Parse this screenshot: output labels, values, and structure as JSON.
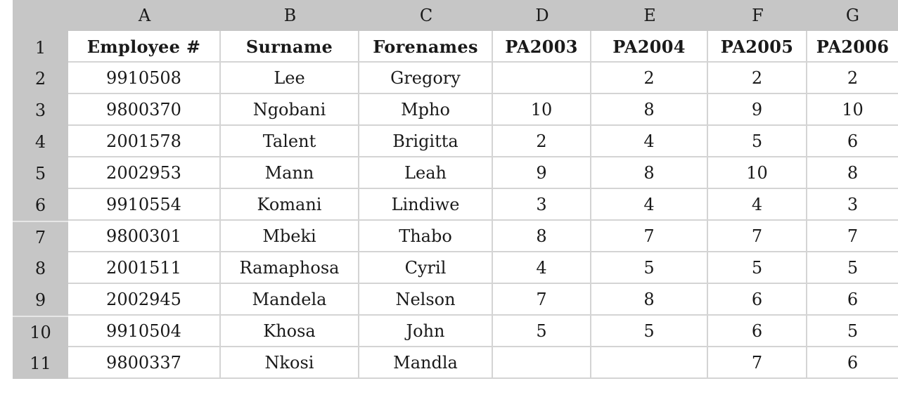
{
  "spreadsheet": {
    "column_headers": [
      "A",
      "B",
      "C",
      "D",
      "E",
      "F",
      "G"
    ],
    "rows": [
      {
        "num": "1",
        "cells": [
          "Employee #",
          "Surname",
          "Forenames",
          "PA2003",
          "PA2004",
          "PA2005",
          "PA2006"
        ]
      },
      {
        "num": "2",
        "cells": [
          "9910508",
          "Lee",
          "Gregory",
          "",
          "2",
          "2",
          "2"
        ]
      },
      {
        "num": "3",
        "cells": [
          "9800370",
          "Ngobani",
          "Mpho",
          "10",
          "8",
          "9",
          "10"
        ]
      },
      {
        "num": "4",
        "cells": [
          "2001578",
          "Talent",
          "Brigitta",
          "2",
          "4",
          "5",
          "6"
        ]
      },
      {
        "num": "5",
        "cells": [
          "2002953",
          "Mann",
          "Leah",
          "9",
          "8",
          "10",
          "8"
        ]
      },
      {
        "num": "6",
        "cells": [
          "9910554",
          "Komani",
          "Lindiwe",
          "3",
          "4",
          "4",
          "3"
        ]
      },
      {
        "num": "7",
        "cells": [
          "9800301",
          "Mbeki",
          "Thabo",
          "8",
          "7",
          "7",
          "7"
        ]
      },
      {
        "num": "8",
        "cells": [
          "2001511",
          "Ramaphosa",
          "Cyril",
          "4",
          "5",
          "5",
          "5"
        ]
      },
      {
        "num": "9",
        "cells": [
          "2002945",
          "Mandela",
          "Nelson",
          "7",
          "8",
          "6",
          "6"
        ]
      },
      {
        "num": "10",
        "cells": [
          "9910504",
          "Khosa",
          "John",
          "5",
          "5",
          "6",
          "5"
        ]
      },
      {
        "num": "11",
        "cells": [
          "9800337",
          "Nkosi",
          "Mandla",
          "",
          "",
          "7",
          "6"
        ]
      }
    ]
  }
}
